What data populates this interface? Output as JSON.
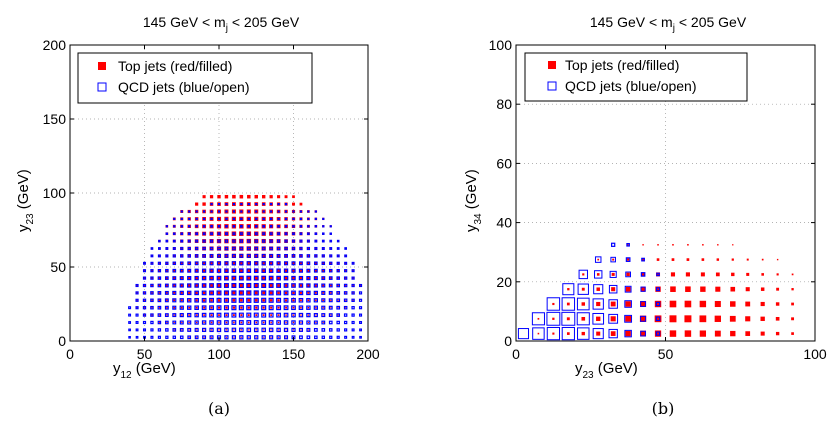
{
  "chart_data": [
    {
      "type": "scatter",
      "title_prefix": "145 GeV < m",
      "title_sub": "j",
      "title_suffix": " < 205 GeV",
      "xlabel_main": "y",
      "xlabel_sub": "12",
      "xlabel_unit": " (GeV)",
      "ylabel_main": "y",
      "ylabel_sub": "23",
      "ylabel_unit": " (GeV)",
      "xlim": [
        0,
        200
      ],
      "ylim": [
        0,
        200
      ],
      "xticks": [
        0,
        50,
        100,
        150,
        200
      ],
      "yticks": [
        0,
        50,
        100,
        150,
        200
      ],
      "grid": true,
      "legend_position": "top-left",
      "legend": [
        "Top jets (red/filled)",
        "QCD jets (blue/open)"
      ],
      "caption": "(a)",
      "binning": {
        "x_start": 35,
        "x_end": 195,
        "x_step": 5,
        "y_start": 2.5,
        "y_end": 102.5,
        "y_step": 5
      },
      "series": [
        {
          "name": "Top jets (red/filled)",
          "color": "#ff0000",
          "marker": "filled-square",
          "core_center": [
            115,
            70
          ],
          "core_sigma": [
            35,
            28
          ],
          "size_scale": 4.5
        },
        {
          "name": "QCD jets (blue/open)",
          "color": "#0000ff",
          "marker": "open-square",
          "core_center": [
            120,
            28
          ],
          "core_sigma": [
            45,
            25
          ],
          "size_scale": 4.0
        }
      ]
    },
    {
      "type": "scatter",
      "title_prefix": "145 GeV < m",
      "title_sub": "j",
      "title_suffix": " < 205 GeV",
      "xlabel_main": "y",
      "xlabel_sub": "23",
      "xlabel_unit": " (GeV)",
      "ylabel_main": "y",
      "ylabel_sub": "34",
      "ylabel_unit": " (GeV)",
      "xlim": [
        0,
        100
      ],
      "ylim": [
        0,
        100
      ],
      "xticks": [
        0,
        50,
        100
      ],
      "yticks": [
        0,
        20,
        40,
        60,
        80,
        100
      ],
      "grid": true,
      "legend_position": "top-left",
      "legend": [
        "Top jets (red/filled)",
        "QCD jets (blue/open)"
      ],
      "caption": "(b)",
      "binning": {
        "x_start": 2.5,
        "x_end": 97.5,
        "x_step": 5,
        "y_start": 2.5,
        "y_end": 42.5,
        "y_step": 5
      },
      "series": [
        {
          "name": "Top jets (red/filled)",
          "color": "#ff0000",
          "marker": "filled-square",
          "core_center": [
            55,
            8
          ],
          "core_sigma": [
            20,
            10
          ],
          "size_scale": 7
        },
        {
          "name": "QCD jets (blue/open)",
          "color": "#0000ff",
          "marker": "open-square",
          "core_center": [
            15,
            8
          ],
          "core_sigma": [
            14,
            12
          ],
          "size_scale": 13
        }
      ]
    }
  ]
}
